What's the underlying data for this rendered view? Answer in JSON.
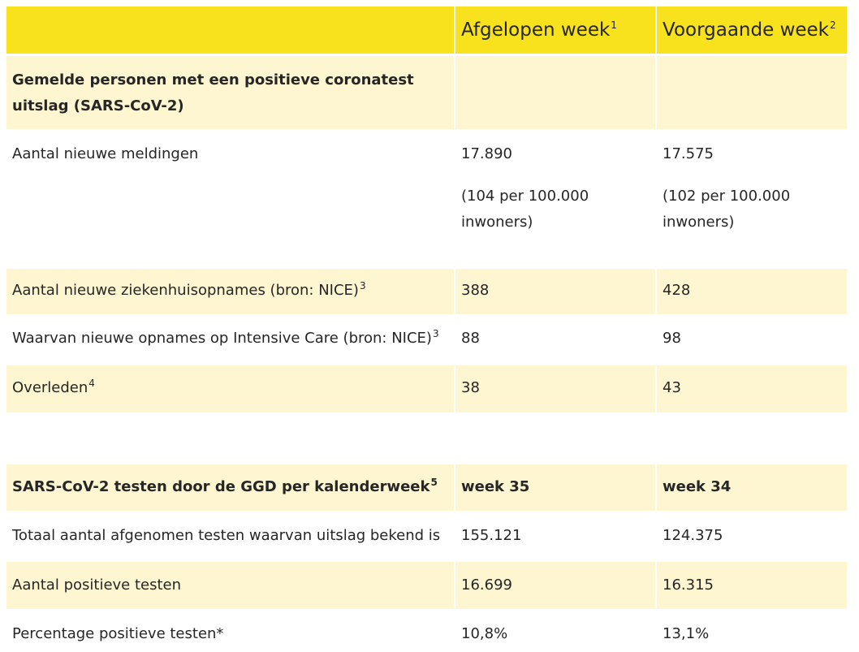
{
  "header": {
    "col_last_week": "Afgelopen week",
    "col_last_week_sup": "1",
    "col_prev_week": "Voorgaande week",
    "col_prev_week_sup": "2"
  },
  "section1": {
    "title": "Gemelde personen met een positieve coronatest uitslag (SARS-CoV-2)"
  },
  "rows": {
    "meldingen": {
      "label": "Aantal nieuwe meldingen",
      "v1": "17.890",
      "v1_note": "(104 per 100.000 inwoners)",
      "v2": "17.575",
      "v2_note": "(102 per 100.000 inwoners)"
    },
    "ziekenhuis": {
      "label": "Aantal nieuwe  ziekenhuisopnames (bron: NICE)",
      "sup": "3",
      "v1": "388",
      "v2": "428"
    },
    "ic": {
      "label": "Waarvan nieuwe opnames op Intensive Care (bron: NICE)",
      "sup": "3",
      "v1": "88",
      "v2": "98"
    },
    "overleden": {
      "label": "Overleden",
      "sup": "4",
      "v1": "38",
      "v2": "43"
    }
  },
  "section2": {
    "title": "SARS-CoV-2 testen door de GGD per kalenderweek",
    "sup": "5",
    "v1": "week 35",
    "v2": "week 34"
  },
  "rows2": {
    "totaal": {
      "label": "Totaal aantal afgenomen testen waarvan uitslag bekend is",
      "v1": "155.121",
      "v2": "124.375"
    },
    "positief": {
      "label": "Aantal positieve testen",
      "v1": "16.699",
      "v2": "16.315"
    },
    "percentage": {
      "label": "Percentage positieve testen*",
      "v1": "10,8%",
      "v2": "13,1%"
    }
  },
  "colors": {
    "header_yellow": "#f8e21e",
    "row_light_yellow": "#fdf6d0",
    "text": "#262626"
  }
}
